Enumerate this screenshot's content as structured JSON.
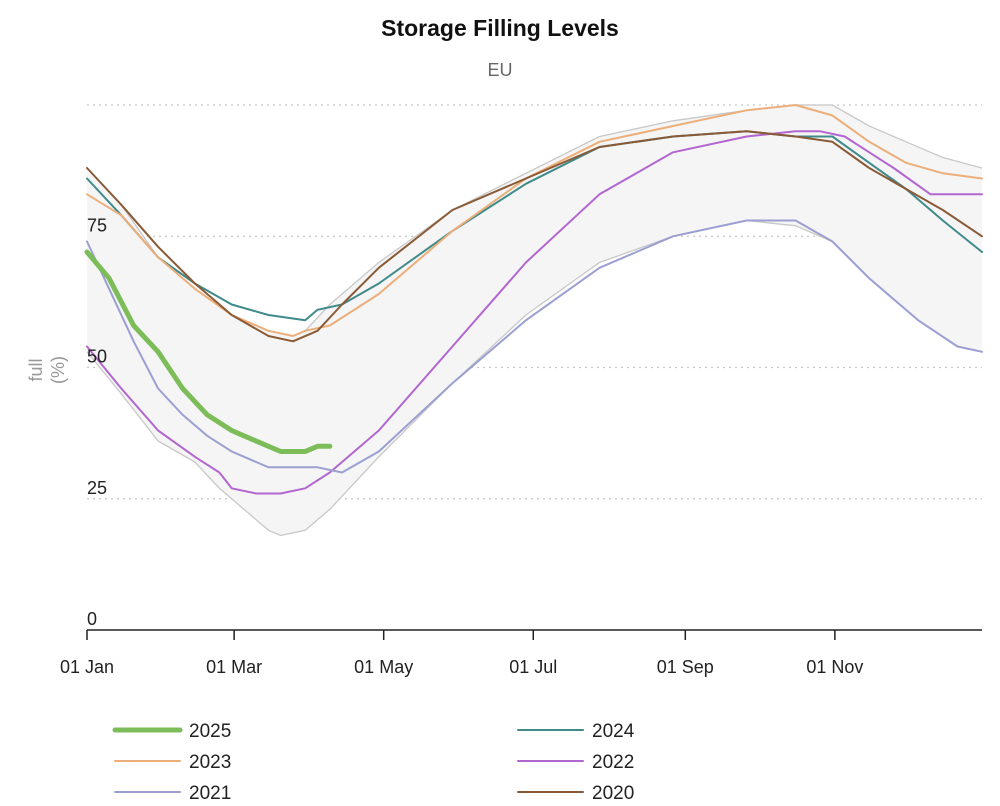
{
  "chart_data": {
    "type": "line",
    "title": "Storage Filling Levels",
    "subtitle": "EU",
    "ylabel": "full",
    "ylabel_unit": "(%)",
    "ylim": [
      0,
      100
    ],
    "yticks": [
      0,
      25,
      50,
      75
    ],
    "grid": "horizontal dotted",
    "legend_position": "bottom",
    "xlim_day": [
      1,
      366
    ],
    "xticks": [
      {
        "label": "01 Jan",
        "day": 1
      },
      {
        "label": "01 Mar",
        "day": 61
      },
      {
        "label": "01 May",
        "day": 122
      },
      {
        "label": "01 Jul",
        "day": 183
      },
      {
        "label": "01 Sep",
        "day": 245
      },
      {
        "label": "01 Nov",
        "day": 306
      }
    ],
    "range_band": {
      "color": "#f5f5f5",
      "edge_color": "#c8c8c8",
      "upper": [
        [
          1,
          88
        ],
        [
          15,
          81
        ],
        [
          30,
          71
        ],
        [
          45,
          65
        ],
        [
          60,
          60
        ],
        [
          75,
          57
        ],
        [
          85,
          56
        ],
        [
          90,
          57
        ],
        [
          100,
          62
        ],
        [
          120,
          70
        ],
        [
          150,
          80
        ],
        [
          180,
          87
        ],
        [
          210,
          94
        ],
        [
          240,
          97
        ],
        [
          270,
          99
        ],
        [
          290,
          100
        ],
        [
          305,
          100
        ],
        [
          320,
          96
        ],
        [
          335,
          93
        ],
        [
          350,
          90
        ],
        [
          366,
          88
        ]
      ],
      "lower": [
        [
          1,
          53
        ],
        [
          15,
          45
        ],
        [
          30,
          36
        ],
        [
          45,
          32
        ],
        [
          55,
          27
        ],
        [
          60,
          25
        ],
        [
          65,
          23
        ],
        [
          75,
          19
        ],
        [
          80,
          18
        ],
        [
          90,
          19
        ],
        [
          100,
          23
        ],
        [
          120,
          33
        ],
        [
          150,
          47
        ],
        [
          180,
          60
        ],
        [
          210,
          70
        ],
        [
          240,
          75
        ],
        [
          270,
          78
        ],
        [
          290,
          77
        ],
        [
          305,
          74
        ],
        [
          320,
          67
        ],
        [
          340,
          59
        ],
        [
          356,
          54
        ],
        [
          366,
          53
        ]
      ]
    },
    "series": [
      {
        "name": "2025",
        "color": "#7cbd5a",
        "width": 5,
        "points": [
          [
            1,
            72
          ],
          [
            10,
            67
          ],
          [
            20,
            58
          ],
          [
            30,
            53
          ],
          [
            40,
            46
          ],
          [
            50,
            41
          ],
          [
            60,
            38
          ],
          [
            65,
            37
          ],
          [
            75,
            35
          ],
          [
            80,
            34
          ],
          [
            85,
            34
          ],
          [
            90,
            34
          ],
          [
            95,
            35
          ],
          [
            100,
            35
          ]
        ]
      },
      {
        "name": "2024",
        "color": "#3f8a8a",
        "width": 2,
        "points": [
          [
            1,
            86
          ],
          [
            15,
            79
          ],
          [
            30,
            71
          ],
          [
            45,
            66
          ],
          [
            60,
            62
          ],
          [
            75,
            60
          ],
          [
            90,
            59
          ],
          [
            95,
            61
          ],
          [
            105,
            62
          ],
          [
            120,
            66
          ],
          [
            150,
            76
          ],
          [
            180,
            85
          ],
          [
            210,
            92
          ],
          [
            240,
            94
          ],
          [
            270,
            95
          ],
          [
            290,
            94
          ],
          [
            305,
            94
          ],
          [
            320,
            89
          ],
          [
            335,
            84
          ],
          [
            350,
            78
          ],
          [
            366,
            72
          ]
        ]
      },
      {
        "name": "2023",
        "color": "#ecae7a",
        "width": 2,
        "points": [
          [
            1,
            83
          ],
          [
            15,
            79
          ],
          [
            30,
            71
          ],
          [
            45,
            65
          ],
          [
            60,
            60
          ],
          [
            75,
            57
          ],
          [
            85,
            56
          ],
          [
            90,
            57
          ],
          [
            100,
            58
          ],
          [
            120,
            64
          ],
          [
            150,
            76
          ],
          [
            180,
            86
          ],
          [
            210,
            93
          ],
          [
            240,
            96
          ],
          [
            270,
            99
          ],
          [
            290,
            100
          ],
          [
            305,
            98
          ],
          [
            320,
            93
          ],
          [
            335,
            89
          ],
          [
            350,
            87
          ],
          [
            366,
            86
          ]
        ]
      },
      {
        "name": "2022",
        "color": "#b266cf",
        "width": 2,
        "points": [
          [
            1,
            54
          ],
          [
            15,
            46
          ],
          [
            30,
            38
          ],
          [
            45,
            33
          ],
          [
            55,
            30
          ],
          [
            60,
            27
          ],
          [
            70,
            26
          ],
          [
            80,
            26
          ],
          [
            90,
            27
          ],
          [
            100,
            30
          ],
          [
            120,
            38
          ],
          [
            150,
            54
          ],
          [
            180,
            70
          ],
          [
            210,
            83
          ],
          [
            240,
            91
          ],
          [
            270,
            94
          ],
          [
            290,
            95
          ],
          [
            300,
            95
          ],
          [
            310,
            94
          ],
          [
            320,
            91
          ],
          [
            330,
            88
          ],
          [
            345,
            83
          ],
          [
            366,
            83
          ]
        ]
      },
      {
        "name": "2021",
        "color": "#9b9fd1",
        "width": 2,
        "points": [
          [
            1,
            74
          ],
          [
            10,
            65
          ],
          [
            20,
            55
          ],
          [
            30,
            46
          ],
          [
            40,
            41
          ],
          [
            50,
            37
          ],
          [
            60,
            34
          ],
          [
            70,
            32
          ],
          [
            75,
            31
          ],
          [
            85,
            31
          ],
          [
            95,
            31
          ],
          [
            105,
            30
          ],
          [
            120,
            34
          ],
          [
            150,
            47
          ],
          [
            180,
            59
          ],
          [
            210,
            69
          ],
          [
            240,
            75
          ],
          [
            270,
            78
          ],
          [
            290,
            78
          ],
          [
            305,
            74
          ],
          [
            320,
            67
          ],
          [
            340,
            59
          ],
          [
            356,
            54
          ],
          [
            366,
            53
          ]
        ]
      },
      {
        "name": "2020",
        "color": "#8a5a36",
        "width": 2,
        "points": [
          [
            1,
            88
          ],
          [
            15,
            81
          ],
          [
            30,
            73
          ],
          [
            45,
            66
          ],
          [
            60,
            60
          ],
          [
            75,
            56
          ],
          [
            85,
            55
          ],
          [
            95,
            57
          ],
          [
            105,
            62
          ],
          [
            120,
            69
          ],
          [
            150,
            80
          ],
          [
            180,
            86
          ],
          [
            210,
            92
          ],
          [
            240,
            94
          ],
          [
            270,
            95
          ],
          [
            290,
            94
          ],
          [
            305,
            93
          ],
          [
            320,
            88
          ],
          [
            335,
            84
          ],
          [
            350,
            80
          ],
          [
            366,
            75
          ]
        ]
      }
    ]
  }
}
